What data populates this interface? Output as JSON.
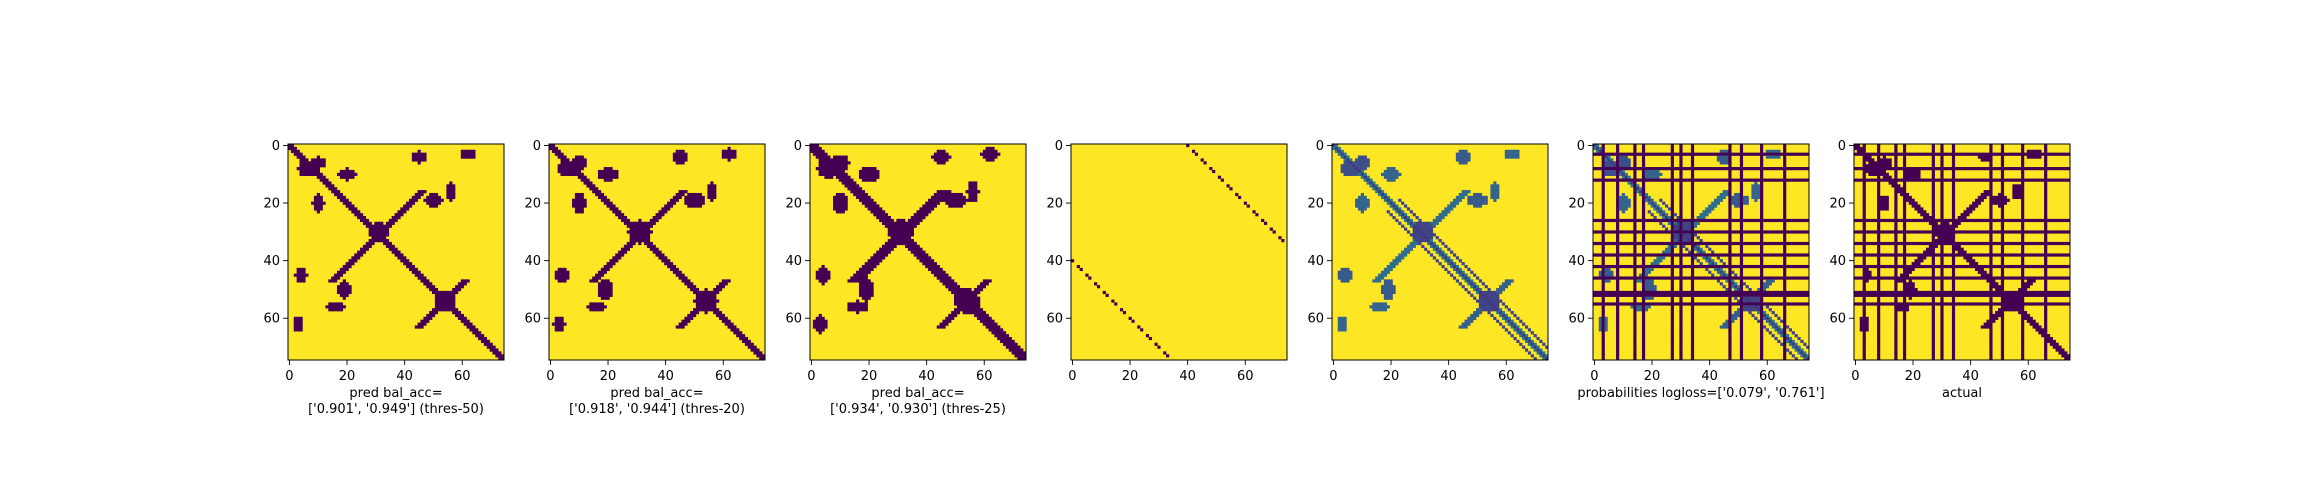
{
  "colors": {
    "low": "#440154",
    "high": "#fde725",
    "cmap": "viridis"
  },
  "chart_data": [
    {
      "type": "heatmap",
      "panel": "pred-thres-50",
      "xlabel": [
        "pred bal_acc=",
        "['0.901', '0.949'] (thres-50)"
      ],
      "xticks": [
        0,
        20,
        40,
        60
      ],
      "yticks": [
        0,
        20,
        40,
        60
      ],
      "xlim": [
        0,
        75
      ],
      "ylim": [
        75,
        0
      ],
      "grid": false,
      "binary": true
    },
    {
      "type": "heatmap",
      "panel": "pred-thres-20",
      "xlabel": [
        "pred bal_acc=",
        "['0.918', '0.944'] (thres-20)"
      ],
      "xticks": [
        0,
        20,
        40,
        60
      ],
      "yticks": [
        0,
        20,
        40,
        60
      ],
      "xlim": [
        0,
        75
      ],
      "ylim": [
        75,
        0
      ],
      "grid": false,
      "binary": true
    },
    {
      "type": "heatmap",
      "panel": "pred-thres-25",
      "xlabel": [
        "pred bal_acc=",
        "['0.934', '0.930'] (thres-25)"
      ],
      "xticks": [
        0,
        20,
        40,
        60
      ],
      "yticks": [
        0,
        20,
        40,
        60
      ],
      "xlim": [
        0,
        75
      ],
      "ylim": [
        75,
        0
      ],
      "grid": false,
      "binary": true
    },
    {
      "type": "heatmap",
      "panel": "offset-diagonals",
      "xlabel": [],
      "xticks": [
        0,
        20,
        40,
        60
      ],
      "yticks": [
        0,
        20,
        40,
        60
      ],
      "xlim": [
        0,
        75
      ],
      "ylim": [
        75,
        0
      ],
      "grid": false,
      "binary": true
    },
    {
      "type": "heatmap",
      "panel": "probabilities",
      "xlabel": [],
      "xticks": [
        0,
        20,
        40,
        60
      ],
      "yticks": [
        0,
        20,
        40,
        60
      ],
      "xlim": [
        0,
        75
      ],
      "ylim": [
        75,
        0
      ],
      "grid": false,
      "binary": false
    },
    {
      "type": "heatmap",
      "panel": "probabilities-masked",
      "xlabel": [
        "probabilities logloss=['0.079', '0.761']"
      ],
      "xticks": [
        0,
        20,
        40,
        60
      ],
      "yticks": [
        0,
        20,
        40,
        60
      ],
      "xlim": [
        0,
        75
      ],
      "ylim": [
        75,
        0
      ],
      "grid": false,
      "binary": false
    },
    {
      "type": "heatmap",
      "panel": "actual",
      "xlabel": [
        "actual"
      ],
      "xticks": [
        0,
        20,
        40,
        60
      ],
      "yticks": [
        0,
        20,
        40,
        60
      ],
      "xlim": [
        0,
        75
      ],
      "ylim": [
        75,
        0
      ],
      "grid": false,
      "binary": true
    }
  ]
}
